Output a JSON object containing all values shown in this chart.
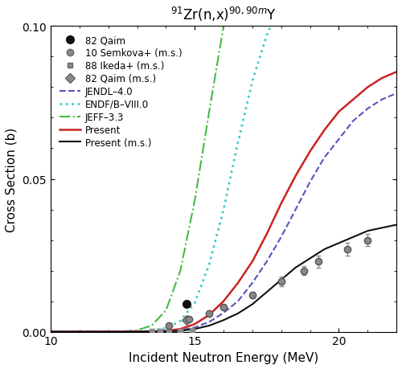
{
  "title": "$^{91}$Zr(n,x)$^{90,90m}$Y",
  "xlabel": "Incident Neutron Energy (MeV)",
  "ylabel": "Cross Section (b)",
  "xlim": [
    10,
    22
  ],
  "ylim": [
    0,
    0.1
  ],
  "yticks": [
    0,
    0.05,
    0.1
  ],
  "xticks": [
    10,
    15,
    20
  ],
  "qaim_data": {
    "x": [
      14.7
    ],
    "y": [
      0.009
    ],
    "color": "#111111",
    "marker": "o",
    "ms": 7
  },
  "semkova_data": {
    "x": [
      14.1,
      14.8,
      15.5,
      16.0,
      17.0,
      18.0,
      18.8,
      19.3,
      20.3,
      21.0
    ],
    "y": [
      0.002,
      0.004,
      0.006,
      0.008,
      0.012,
      0.0165,
      0.02,
      0.023,
      0.027,
      0.03
    ],
    "yerr": [
      0.0003,
      0.0004,
      0.0006,
      0.0008,
      0.001,
      0.0015,
      0.0015,
      0.002,
      0.002,
      0.002
    ],
    "color": "#888888",
    "marker": "o",
    "ms": 6
  },
  "ikeda_data": {
    "x": [
      13.5,
      13.8,
      14.1,
      14.5,
      14.9
    ],
    "y": [
      5e-05,
      8e-05,
      0.00015,
      0.00025,
      0.0004
    ],
    "color": "#888888",
    "marker": "s",
    "ms": 5
  },
  "qaim_ms_data": {
    "x": [
      14.7
    ],
    "y": [
      0.0038
    ],
    "color": "#888888",
    "marker": "D",
    "ms": 6
  },
  "jendl_line": {
    "x": [
      10.0,
      11.0,
      12.0,
      13.0,
      13.5,
      14.0,
      14.5,
      15.0,
      15.5,
      16.0,
      16.5,
      17.0,
      17.5,
      18.0,
      18.5,
      19.0,
      19.5,
      20.0,
      20.5,
      21.0,
      21.5,
      22.0
    ],
    "y": [
      1e-07,
      5e-07,
      3e-06,
      2e-05,
      6e-05,
      0.00018,
      0.0005,
      0.0014,
      0.0032,
      0.0062,
      0.01,
      0.016,
      0.023,
      0.031,
      0.04,
      0.049,
      0.057,
      0.063,
      0.069,
      0.073,
      0.076,
      0.078
    ],
    "color": "#5555bb",
    "linestyle": "--",
    "lw": 1.5
  },
  "endf_line": {
    "x": [
      10.0,
      11.0,
      12.0,
      13.0,
      13.5,
      14.0,
      14.5,
      15.0,
      15.5,
      16.0,
      16.5,
      17.0,
      17.5,
      18.0
    ],
    "y": [
      1e-07,
      1e-06,
      1e-05,
      0.0001,
      0.0004,
      0.0012,
      0.0035,
      0.0095,
      0.022,
      0.04,
      0.062,
      0.082,
      0.097,
      0.108
    ],
    "color": "#44cccc",
    "linestyle": ":",
    "lw": 2.0
  },
  "jeff_line": {
    "x": [
      10.0,
      11.0,
      12.0,
      12.5,
      13.0,
      13.5,
      14.0,
      14.5,
      15.0,
      15.5,
      16.0,
      16.5,
      17.0
    ],
    "y": [
      1e-07,
      1e-06,
      2e-05,
      0.0001,
      0.0005,
      0.002,
      0.007,
      0.02,
      0.043,
      0.072,
      0.1,
      0.12,
      0.135
    ],
    "color": "#44bb44",
    "linestyle": "-.",
    "lw": 1.5
  },
  "present_line": {
    "x": [
      10.0,
      11.0,
      12.0,
      13.0,
      13.5,
      14.0,
      14.5,
      15.0,
      15.5,
      16.0,
      16.5,
      17.0,
      17.5,
      18.0,
      18.5,
      19.0,
      19.5,
      20.0,
      20.5,
      21.0,
      21.5,
      22.0
    ],
    "y": [
      1e-07,
      5e-07,
      4e-06,
      3e-05,
      0.0001,
      0.0003,
      0.0009,
      0.0025,
      0.0055,
      0.01,
      0.016,
      0.023,
      0.032,
      0.042,
      0.051,
      0.059,
      0.066,
      0.072,
      0.076,
      0.08,
      0.083,
      0.085
    ],
    "color": "#cc2222",
    "linestyle": "-",
    "lw": 1.8
  },
  "present_ms_line": {
    "x": [
      10.0,
      11.0,
      12.0,
      13.0,
      13.5,
      14.0,
      14.5,
      15.0,
      15.5,
      16.0,
      16.5,
      17.0,
      17.5,
      18.0,
      18.5,
      19.0,
      19.5,
      20.0,
      20.5,
      21.0,
      21.5,
      22.0
    ],
    "y": [
      1e-07,
      2e-07,
      1e-06,
      8e-06,
      3e-05,
      0.0001,
      0.0003,
      0.0009,
      0.002,
      0.0038,
      0.006,
      0.009,
      0.013,
      0.017,
      0.021,
      0.024,
      0.027,
      0.029,
      0.031,
      0.033,
      0.034,
      0.035
    ],
    "color": "#111111",
    "linestyle": "-",
    "lw": 1.5
  },
  "legend_fontsize": 8.5,
  "axis_fontsize": 11,
  "title_fontsize": 12,
  "bg_color": "#ffffff"
}
